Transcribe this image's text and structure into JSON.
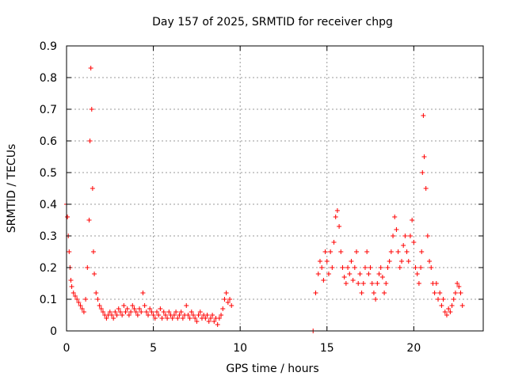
{
  "chart_data": {
    "type": "scatter",
    "title": "Day 157 of 2025, SRMTID for receiver chpg",
    "xlabel": "GPS time / hours",
    "ylabel": "SRMTID / TECUs",
    "xlim": [
      0,
      24
    ],
    "ylim": [
      0,
      0.9
    ],
    "xticks": [
      0,
      5,
      10,
      15,
      20
    ],
    "xtick_labels": [
      "0",
      "5",
      "10",
      "15",
      "20"
    ],
    "yticks": [
      0,
      0.1,
      0.2,
      0.3,
      0.4,
      0.5,
      0.6,
      0.7,
      0.8,
      0.9
    ],
    "ytick_labels": [
      "0",
      "0.1",
      "0.2",
      "0.3",
      "0.4",
      "0.5",
      "0.6",
      "0.7",
      "0.8",
      "0.9"
    ],
    "grid": true,
    "marker": "+",
    "color": "#ff0000",
    "series": [
      {
        "name": "SRMTID",
        "x": [
          0.0,
          0.05,
          0.1,
          0.15,
          0.2,
          0.25,
          0.3,
          0.4,
          0.5,
          0.6,
          0.7,
          0.8,
          0.9,
          1.0,
          1.1,
          1.2,
          1.3,
          1.35,
          1.4,
          1.45,
          1.5,
          1.55,
          1.6,
          1.7,
          1.8,
          1.9,
          2.0,
          2.1,
          2.2,
          2.3,
          2.4,
          2.5,
          2.6,
          2.7,
          2.8,
          2.9,
          3.0,
          3.1,
          3.2,
          3.3,
          3.4,
          3.5,
          3.6,
          3.7,
          3.8,
          3.9,
          4.0,
          4.1,
          4.2,
          4.3,
          4.4,
          4.5,
          4.6,
          4.7,
          4.8,
          4.9,
          5.0,
          5.1,
          5.2,
          5.3,
          5.4,
          5.5,
          5.6,
          5.7,
          5.8,
          5.9,
          6.0,
          6.1,
          6.2,
          6.3,
          6.4,
          6.5,
          6.6,
          6.7,
          6.8,
          6.9,
          7.0,
          7.1,
          7.2,
          7.3,
          7.4,
          7.5,
          7.6,
          7.7,
          7.8,
          7.9,
          8.0,
          8.1,
          8.2,
          8.3,
          8.4,
          8.5,
          8.6,
          8.7,
          8.8,
          8.9,
          9.0,
          9.1,
          9.2,
          9.3,
          9.4,
          9.5,
          14.2,
          14.35,
          14.5,
          14.6,
          14.7,
          14.8,
          14.9,
          15.0,
          15.1,
          15.2,
          15.3,
          15.4,
          15.5,
          15.6,
          15.7,
          15.8,
          15.9,
          16.0,
          16.1,
          16.2,
          16.3,
          16.4,
          16.5,
          16.6,
          16.7,
          16.8,
          16.9,
          17.0,
          17.1,
          17.2,
          17.3,
          17.4,
          17.5,
          17.6,
          17.7,
          17.8,
          17.9,
          18.0,
          18.1,
          18.2,
          18.3,
          18.4,
          18.5,
          18.6,
          18.7,
          18.8,
          18.9,
          19.0,
          19.1,
          19.2,
          19.3,
          19.4,
          19.5,
          19.6,
          19.7,
          19.8,
          19.9,
          20.0,
          20.1,
          20.2,
          20.3,
          20.4,
          20.45,
          20.5,
          20.55,
          20.6,
          20.7,
          20.8,
          20.9,
          21.0,
          21.1,
          21.2,
          21.3,
          21.4,
          21.5,
          21.6,
          21.7,
          21.8,
          21.9,
          22.0,
          22.1,
          22.2,
          22.3,
          22.4,
          22.5,
          22.6,
          22.7,
          22.8
        ],
        "y": [
          0.4,
          0.36,
          0.3,
          0.25,
          0.2,
          0.16,
          0.14,
          0.12,
          0.11,
          0.1,
          0.09,
          0.08,
          0.07,
          0.06,
          0.1,
          0.2,
          0.35,
          0.6,
          0.83,
          0.7,
          0.45,
          0.25,
          0.18,
          0.12,
          0.1,
          0.08,
          0.07,
          0.06,
          0.05,
          0.04,
          0.05,
          0.06,
          0.05,
          0.04,
          0.06,
          0.05,
          0.07,
          0.06,
          0.05,
          0.08,
          0.06,
          0.07,
          0.05,
          0.06,
          0.08,
          0.07,
          0.06,
          0.05,
          0.07,
          0.06,
          0.12,
          0.08,
          0.06,
          0.05,
          0.07,
          0.06,
          0.05,
          0.04,
          0.06,
          0.05,
          0.07,
          0.04,
          0.06,
          0.05,
          0.04,
          0.06,
          0.05,
          0.04,
          0.05,
          0.06,
          0.04,
          0.05,
          0.06,
          0.04,
          0.05,
          0.08,
          0.05,
          0.04,
          0.06,
          0.05,
          0.04,
          0.03,
          0.05,
          0.06,
          0.04,
          0.05,
          0.04,
          0.05,
          0.03,
          0.04,
          0.05,
          0.03,
          0.04,
          0.02,
          0.04,
          0.05,
          0.07,
          0.1,
          0.12,
          0.09,
          0.1,
          0.08,
          0.0,
          0.12,
          0.18,
          0.22,
          0.2,
          0.16,
          0.25,
          0.22,
          0.18,
          0.25,
          0.2,
          0.28,
          0.36,
          0.38,
          0.33,
          0.25,
          0.2,
          0.17,
          0.15,
          0.2,
          0.18,
          0.22,
          0.16,
          0.2,
          0.25,
          0.15,
          0.18,
          0.12,
          0.15,
          0.2,
          0.25,
          0.18,
          0.2,
          0.15,
          0.12,
          0.1,
          0.15,
          0.18,
          0.2,
          0.17,
          0.12,
          0.15,
          0.2,
          0.22,
          0.25,
          0.3,
          0.36,
          0.32,
          0.25,
          0.2,
          0.22,
          0.27,
          0.3,
          0.25,
          0.22,
          0.3,
          0.35,
          0.28,
          0.2,
          0.18,
          0.15,
          0.2,
          0.25,
          0.5,
          0.68,
          0.55,
          0.45,
          0.3,
          0.22,
          0.2,
          0.15,
          0.12,
          0.15,
          0.1,
          0.12,
          0.08,
          0.1,
          0.06,
          0.05,
          0.07,
          0.06,
          0.08,
          0.1,
          0.12,
          0.15,
          0.14,
          0.12,
          0.08
        ]
      }
    ]
  }
}
